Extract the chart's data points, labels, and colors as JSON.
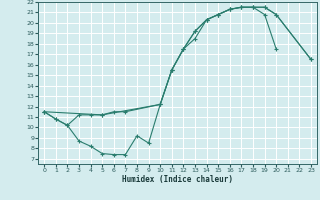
{
  "xlabel": "Humidex (Indice chaleur)",
  "bg_color": "#d4ecee",
  "grid_color": "#ffffff",
  "line_color": "#2a7d6e",
  "xlim": [
    -0.5,
    23.5
  ],
  "ylim": [
    6.5,
    22.0
  ],
  "xticks": [
    0,
    1,
    2,
    3,
    4,
    5,
    6,
    7,
    8,
    9,
    10,
    11,
    12,
    13,
    14,
    15,
    16,
    17,
    18,
    19,
    20,
    21,
    22,
    23
  ],
  "yticks": [
    7,
    8,
    9,
    10,
    11,
    12,
    13,
    14,
    15,
    16,
    17,
    18,
    19,
    20,
    21,
    22
  ],
  "curve1": {
    "x": [
      0,
      1,
      2,
      3,
      4,
      5,
      6,
      7,
      8,
      9,
      10,
      11,
      12,
      13,
      14,
      15,
      16,
      17,
      18,
      19,
      20
    ],
    "y": [
      11.5,
      10.8,
      10.2,
      8.7,
      8.2,
      7.5,
      7.4,
      7.4,
      9.2,
      8.5,
      12.2,
      15.5,
      17.5,
      18.5,
      20.3,
      20.8,
      21.3,
      21.5,
      21.5,
      20.8,
      17.5
    ]
  },
  "curve2": {
    "x": [
      0,
      1,
      2,
      3,
      4,
      5,
      6,
      7,
      10,
      11,
      12,
      13,
      14,
      15,
      16,
      17,
      18,
      19,
      20,
      23
    ],
    "y": [
      11.5,
      10.8,
      10.2,
      11.2,
      11.2,
      11.2,
      11.5,
      11.5,
      12.2,
      15.5,
      17.5,
      19.2,
      20.3,
      20.8,
      21.3,
      21.5,
      21.5,
      21.5,
      20.8,
      16.5
    ]
  },
  "curve3": {
    "x": [
      0,
      5,
      10,
      11,
      12,
      13,
      14,
      15,
      16,
      17,
      18,
      19,
      20,
      23
    ],
    "y": [
      11.5,
      11.2,
      12.2,
      15.5,
      17.5,
      19.2,
      20.3,
      20.8,
      21.3,
      21.5,
      21.5,
      21.5,
      20.8,
      16.5
    ]
  }
}
